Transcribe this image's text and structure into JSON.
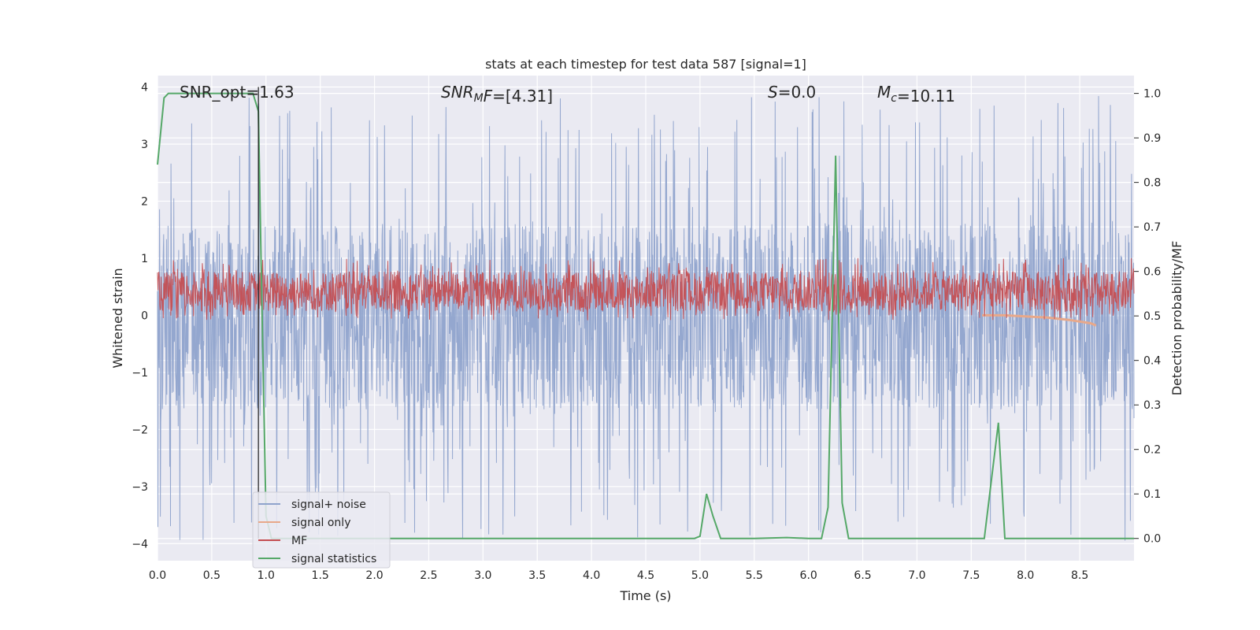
{
  "chart_data": {
    "type": "line",
    "title": "stats at each timestep for test data 587 [signal=1]",
    "xlabel": "Time (s)",
    "ylabel": "Whitened strain",
    "ylabel_right": "Detection probability/MF",
    "xlim": [
      0.0,
      9.0
    ],
    "ylim": [
      -4.3,
      4.2
    ],
    "ylim_right": [
      -0.05,
      1.04
    ],
    "x_ticks": [
      0.0,
      0.5,
      1.0,
      1.5,
      2.0,
      2.5,
      3.0,
      3.5,
      4.0,
      4.5,
      5.0,
      5.5,
      6.0,
      6.5,
      7.0,
      7.5,
      8.0,
      8.5
    ],
    "x_tick_labels": [
      "0.0",
      "0.5",
      "1.0",
      "1.5",
      "2.0",
      "2.5",
      "3.0",
      "3.5",
      "4.0",
      "4.5",
      "5.0",
      "5.5",
      "6.0",
      "6.5",
      "7.0",
      "7.5",
      "8.0",
      "8.5"
    ],
    "y_ticks": [
      -4,
      -3,
      -2,
      -1,
      0,
      1,
      2,
      3,
      4
    ],
    "y_tick_labels": [
      "−4",
      "−3",
      "−2",
      "−1",
      "0",
      "1",
      "2",
      "3",
      "4"
    ],
    "y_ticks_right": [
      0.0,
      0.1,
      0.2,
      0.3,
      0.4,
      0.5,
      0.6,
      0.7,
      0.8,
      0.9,
      1.0
    ],
    "y_tick_labels_right": [
      "0.0",
      "0.1",
      "0.2",
      "0.3",
      "0.4",
      "0.5",
      "0.6",
      "0.7",
      "0.8",
      "0.9",
      "1.0"
    ],
    "grid": true,
    "legend_position": "lower-left",
    "annotations": [
      {
        "prefix": "SNR_opt=",
        "value": "1.63",
        "italic_base": "",
        "sub": ""
      },
      {
        "prefix": "",
        "value": "=[4.31]",
        "italic_base": "SNR",
        "sub": "M",
        "suffix_italic": "F"
      },
      {
        "prefix": "",
        "value": "=0.0",
        "italic_base": "S",
        "sub": ""
      },
      {
        "prefix": "",
        "value": "=10.11",
        "italic_base": "M",
        "sub": "c"
      }
    ],
    "vline_x": 0.93,
    "series": [
      {
        "name": "signal+ noise",
        "axis": "left",
        "color": "#8fa3cc",
        "kind": "noise-band",
        "x_range": [
          0.0,
          9.0
        ],
        "core_band": [
          -1.65,
          1.6
        ],
        "spike_max": 3.85,
        "spike_min": -3.95
      },
      {
        "name": "signal only",
        "axis": "left",
        "color": "#e8a88a",
        "kind": "chirp",
        "x": [
          7.6,
          7.8,
          8.0,
          8.2,
          8.4,
          8.6,
          8.65
        ],
        "y": [
          0.0,
          0.0,
          -0.02,
          -0.04,
          -0.08,
          -0.14,
          -0.18
        ]
      },
      {
        "name": "MF",
        "axis": "right",
        "color": "#c44e52",
        "kind": "noise-band",
        "x_range": [
          0.0,
          9.0
        ],
        "core_band": [
          0.51,
          0.6
        ],
        "spike_max": 0.63,
        "spike_min": 0.49
      },
      {
        "name": "signal statistics",
        "axis": "right",
        "color": "#55a868",
        "kind": "line",
        "x": [
          0.0,
          0.06,
          0.1,
          0.15,
          0.2,
          0.3,
          0.5,
          0.7,
          0.85,
          0.88,
          0.93,
          0.96,
          1.0,
          1.05,
          1.5,
          2.0,
          3.0,
          4.0,
          4.95,
          5.0,
          5.06,
          5.12,
          5.19,
          5.5,
          5.8,
          6.0,
          6.12,
          6.18,
          6.25,
          6.31,
          6.37,
          6.5,
          7.0,
          7.5,
          7.62,
          7.75,
          7.81,
          7.9,
          8.5,
          9.0
        ],
        "y": [
          0.84,
          0.99,
          1.0,
          1.0,
          1.0,
          1.0,
          1.0,
          1.0,
          1.0,
          1.0,
          0.96,
          0.55,
          0.05,
          0.0,
          0.0,
          0.0,
          0.0,
          0.0,
          0.0,
          0.005,
          0.1,
          0.05,
          0.0,
          0.0,
          0.002,
          0.0,
          0.0,
          0.07,
          0.86,
          0.08,
          0.0,
          0.0,
          0.0,
          0.0,
          0.0,
          0.26,
          0.0,
          0.0,
          0.0,
          0.0
        ]
      }
    ]
  }
}
